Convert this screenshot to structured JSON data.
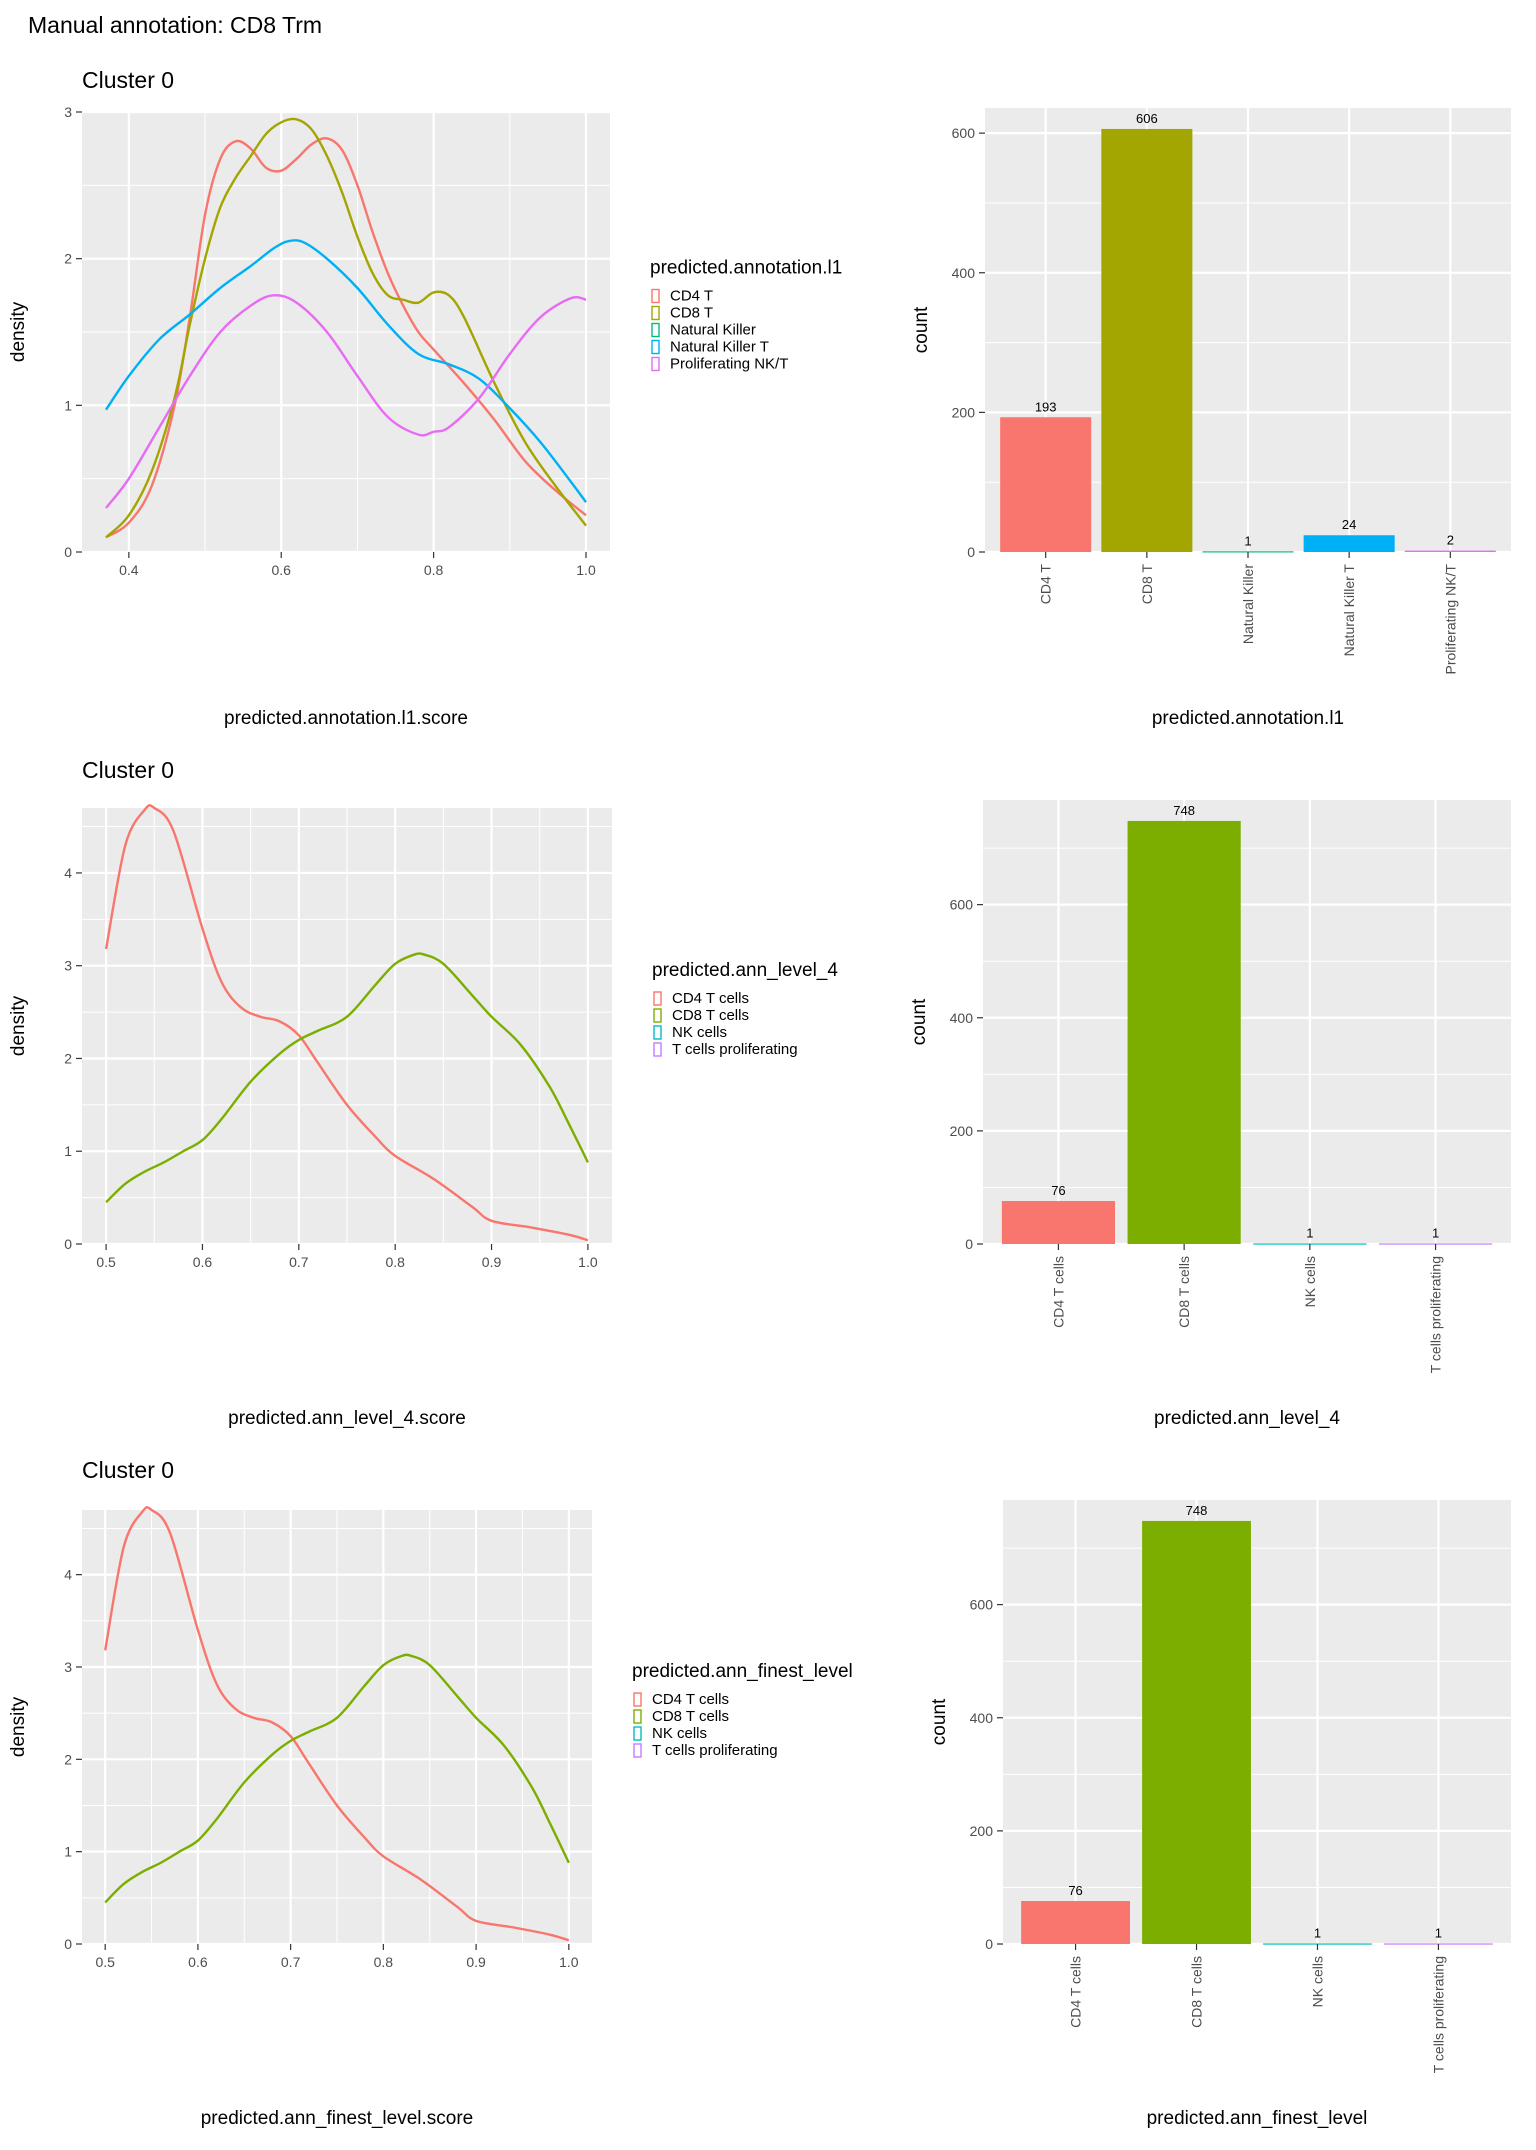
{
  "page": {
    "title": "Manual annotation: CD8 Trm"
  },
  "colors": {
    "panel_bg": "#ebebeb",
    "grid": "#ffffff",
    "tick": "#4d4d4d"
  },
  "chart_data": [
    {
      "type": "line",
      "id": "density-l1",
      "title": "Cluster 0",
      "xlabel": "predicted.annotation.l1.score",
      "ylabel": "density",
      "xlim": [
        0.37,
        1.0
      ],
      "ylim": [
        0,
        3
      ],
      "xticks": [
        "0.4",
        "0.6",
        "0.8",
        "1.0"
      ],
      "xtick_values": [
        0.4,
        0.6,
        0.8,
        1.0
      ],
      "yticks": [
        "0",
        "1",
        "2",
        "3"
      ],
      "ytick_values": [
        0,
        1,
        2,
        3
      ],
      "grid": true,
      "legend": {
        "title": "predicted.annotation.l1",
        "position": "right",
        "entries": [
          "CD4 T",
          "CD8 T",
          "Natural Killer",
          "Natural Killer T",
          "Proliferating NK/T"
        ],
        "colors": [
          "#F8766D",
          "#A3A500",
          "#00BF7D",
          "#00B0F6",
          "#E76BF3"
        ]
      },
      "series": [
        {
          "name": "CD4 T",
          "color": "#F8766D",
          "x": [
            0.37,
            0.4,
            0.43,
            0.46,
            0.48,
            0.5,
            0.52,
            0.54,
            0.56,
            0.58,
            0.6,
            0.62,
            0.64,
            0.66,
            0.68,
            0.7,
            0.72,
            0.74,
            0.76,
            0.78,
            0.8,
            0.84,
            0.88,
            0.92,
            0.96,
            1.0
          ],
          "y": [
            0.1,
            0.2,
            0.45,
            1.0,
            1.6,
            2.3,
            2.68,
            2.8,
            2.75,
            2.62,
            2.6,
            2.68,
            2.78,
            2.82,
            2.74,
            2.5,
            2.18,
            1.9,
            1.68,
            1.5,
            1.38,
            1.15,
            0.9,
            0.62,
            0.42,
            0.25
          ]
        },
        {
          "name": "CD8 T",
          "color": "#A3A500",
          "x": [
            0.37,
            0.4,
            0.43,
            0.46,
            0.48,
            0.5,
            0.52,
            0.54,
            0.56,
            0.58,
            0.6,
            0.62,
            0.64,
            0.66,
            0.68,
            0.7,
            0.72,
            0.74,
            0.76,
            0.78,
            0.8,
            0.82,
            0.84,
            0.88,
            0.92,
            0.96,
            1.0
          ],
          "y": [
            0.1,
            0.25,
            0.55,
            1.05,
            1.55,
            2.0,
            2.35,
            2.55,
            2.7,
            2.85,
            2.93,
            2.95,
            2.88,
            2.7,
            2.45,
            2.15,
            1.9,
            1.75,
            1.72,
            1.7,
            1.77,
            1.75,
            1.6,
            1.15,
            0.75,
            0.45,
            0.18
          ]
        },
        {
          "name": "Natural Killer T",
          "color": "#00B0F6",
          "x": [
            0.37,
            0.4,
            0.44,
            0.48,
            0.52,
            0.56,
            0.59,
            0.61,
            0.63,
            0.66,
            0.7,
            0.74,
            0.78,
            0.82,
            0.86,
            0.9,
            0.94,
            0.98,
            1.0
          ],
          "y": [
            0.97,
            1.2,
            1.45,
            1.62,
            1.8,
            1.95,
            2.07,
            2.12,
            2.11,
            2.0,
            1.8,
            1.55,
            1.35,
            1.28,
            1.18,
            0.98,
            0.75,
            0.48,
            0.34
          ]
        },
        {
          "name": "Proliferating NK/T",
          "color": "#E76BF3",
          "x": [
            0.37,
            0.4,
            0.44,
            0.48,
            0.52,
            0.56,
            0.59,
            0.62,
            0.66,
            0.7,
            0.74,
            0.78,
            0.8,
            0.82,
            0.86,
            0.9,
            0.94,
            0.98,
            1.0
          ],
          "y": [
            0.3,
            0.5,
            0.85,
            1.2,
            1.5,
            1.68,
            1.75,
            1.7,
            1.5,
            1.2,
            0.92,
            0.8,
            0.82,
            0.85,
            1.05,
            1.35,
            1.6,
            1.73,
            1.72
          ]
        }
      ]
    },
    {
      "type": "bar",
      "id": "bar-l1",
      "xlabel": "predicted.annotation.l1",
      "ylabel": "count",
      "ylim": [
        0,
        636
      ],
      "yticks": [
        "0",
        "200",
        "400",
        "600"
      ],
      "ytick_values": [
        0,
        200,
        400,
        600
      ],
      "grid": true,
      "categories": [
        "CD4 T",
        "CD8 T",
        "Natural Killer",
        "Natural Killer T",
        "Proliferating NK/T"
      ],
      "values": [
        193,
        606,
        1,
        24,
        2
      ],
      "labels": [
        "193",
        "606",
        "1",
        "24",
        "2"
      ],
      "colors": [
        "#F8766D",
        "#A3A500",
        "#00BF7D",
        "#00B0F6",
        "#E76BF3"
      ]
    },
    {
      "type": "line",
      "id": "density-l4",
      "title": "Cluster 0",
      "xlabel": "predicted.ann_level_4.score",
      "ylabel": "density",
      "xlim": [
        0.5,
        1.0
      ],
      "ylim": [
        0,
        4.7
      ],
      "xticks": [
        "0.5",
        "0.6",
        "0.7",
        "0.8",
        "0.9",
        "1.0"
      ],
      "xtick_values": [
        0.5,
        0.6,
        0.7,
        0.8,
        0.9,
        1.0
      ],
      "yticks": [
        "0",
        "1",
        "2",
        "3",
        "4"
      ],
      "ytick_values": [
        0,
        1,
        2,
        3,
        4
      ],
      "grid": true,
      "legend": {
        "title": "predicted.ann_level_4",
        "position": "right",
        "entries": [
          "CD4 T cells",
          "CD8 T cells",
          "NK cells",
          "T cells proliferating"
        ],
        "colors": [
          "#F8766D",
          "#7CAE00",
          "#00BFC4",
          "#C77CFF"
        ]
      },
      "series": [
        {
          "name": "CD4 T cells",
          "color": "#F8766D",
          "x": [
            0.5,
            0.52,
            0.54,
            0.55,
            0.57,
            0.6,
            0.62,
            0.64,
            0.66,
            0.68,
            0.7,
            0.72,
            0.75,
            0.78,
            0.8,
            0.84,
            0.88,
            0.9,
            0.94,
            0.98,
            1.0
          ],
          "y": [
            3.18,
            4.3,
            4.68,
            4.7,
            4.45,
            3.4,
            2.82,
            2.55,
            2.45,
            2.4,
            2.25,
            1.95,
            1.5,
            1.15,
            0.95,
            0.7,
            0.4,
            0.25,
            0.18,
            0.1,
            0.04
          ]
        },
        {
          "name": "CD8 T cells",
          "color": "#7CAE00",
          "x": [
            0.5,
            0.52,
            0.54,
            0.56,
            0.58,
            0.6,
            0.62,
            0.65,
            0.68,
            0.7,
            0.72,
            0.75,
            0.78,
            0.8,
            0.82,
            0.83,
            0.85,
            0.88,
            0.9,
            0.93,
            0.96,
            0.98,
            1.0
          ],
          "y": [
            0.45,
            0.65,
            0.78,
            0.88,
            1.0,
            1.12,
            1.35,
            1.75,
            2.05,
            2.2,
            2.3,
            2.45,
            2.8,
            3.02,
            3.12,
            3.12,
            3.02,
            2.68,
            2.45,
            2.15,
            1.7,
            1.3,
            0.88
          ]
        }
      ]
    },
    {
      "type": "bar",
      "id": "bar-l4",
      "xlabel": "predicted.ann_level_4",
      "ylabel": "count",
      "ylim": [
        0,
        785
      ],
      "yticks": [
        "0",
        "200",
        "400",
        "600"
      ],
      "ytick_values": [
        0,
        200,
        400,
        600
      ],
      "grid": true,
      "categories": [
        "CD4 T cells",
        "CD8 T cells",
        "NK cells",
        "T cells proliferating"
      ],
      "values": [
        76,
        748,
        1,
        1
      ],
      "labels": [
        "76",
        "748",
        "1",
        "1"
      ],
      "colors": [
        "#F8766D",
        "#7CAE00",
        "#00BFC4",
        "#C77CFF"
      ]
    },
    {
      "type": "line",
      "id": "density-finest",
      "title": "Cluster 0",
      "xlabel": "predicted.ann_finest_level.score",
      "ylabel": "density",
      "xlim": [
        0.5,
        1.0
      ],
      "ylim": [
        0,
        4.7
      ],
      "xticks": [
        "0.5",
        "0.6",
        "0.7",
        "0.8",
        "0.9",
        "1.0"
      ],
      "xtick_values": [
        0.5,
        0.6,
        0.7,
        0.8,
        0.9,
        1.0
      ],
      "yticks": [
        "0",
        "1",
        "2",
        "3",
        "4"
      ],
      "ytick_values": [
        0,
        1,
        2,
        3,
        4
      ],
      "grid": true,
      "legend": {
        "title": "predicted.ann_finest_level",
        "position": "right",
        "entries": [
          "CD4 T cells",
          "CD8 T cells",
          "NK cells",
          "T cells proliferating"
        ],
        "colors": [
          "#F8766D",
          "#7CAE00",
          "#00BFC4",
          "#C77CFF"
        ]
      },
      "series": [
        {
          "name": "CD4 T cells",
          "color": "#F8766D",
          "x": [
            0.5,
            0.52,
            0.54,
            0.55,
            0.57,
            0.6,
            0.62,
            0.64,
            0.66,
            0.68,
            0.7,
            0.72,
            0.75,
            0.78,
            0.8,
            0.84,
            0.88,
            0.9,
            0.94,
            0.98,
            1.0
          ],
          "y": [
            3.18,
            4.3,
            4.68,
            4.7,
            4.45,
            3.4,
            2.82,
            2.55,
            2.45,
            2.4,
            2.25,
            1.95,
            1.5,
            1.15,
            0.95,
            0.7,
            0.4,
            0.25,
            0.18,
            0.1,
            0.04
          ]
        },
        {
          "name": "CD8 T cells",
          "color": "#7CAE00",
          "x": [
            0.5,
            0.52,
            0.54,
            0.56,
            0.58,
            0.6,
            0.62,
            0.65,
            0.68,
            0.7,
            0.72,
            0.75,
            0.78,
            0.8,
            0.82,
            0.83,
            0.85,
            0.88,
            0.9,
            0.93,
            0.96,
            0.98,
            1.0
          ],
          "y": [
            0.45,
            0.65,
            0.78,
            0.88,
            1.0,
            1.12,
            1.35,
            1.75,
            2.05,
            2.2,
            2.3,
            2.45,
            2.8,
            3.02,
            3.12,
            3.12,
            3.02,
            2.68,
            2.45,
            2.15,
            1.7,
            1.3,
            0.88
          ]
        }
      ]
    },
    {
      "type": "bar",
      "id": "bar-finest",
      "xlabel": "predicted.ann_finest_level",
      "ylabel": "count",
      "ylim": [
        0,
        785
      ],
      "yticks": [
        "0",
        "200",
        "400",
        "600"
      ],
      "ytick_values": [
        0,
        200,
        400,
        600
      ],
      "grid": true,
      "categories": [
        "CD4 T cells",
        "CD8 T cells",
        "NK cells",
        "T cells proliferating"
      ],
      "values": [
        76,
        748,
        1,
        1
      ],
      "labels": [
        "76",
        "748",
        "1",
        "1"
      ],
      "colors": [
        "#F8766D",
        "#7CAE00",
        "#00BFC4",
        "#C77CFF"
      ]
    }
  ]
}
